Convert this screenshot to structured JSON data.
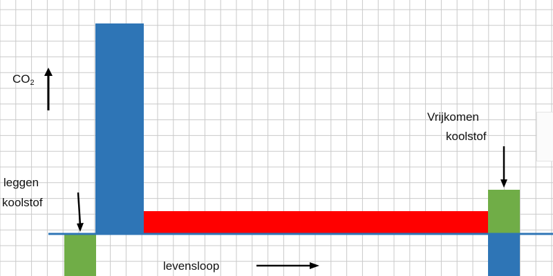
{
  "labels": {
    "co2_main": "CO",
    "co2_sub": "2",
    "vrijkomen_line1": "Vrijkomen",
    "vrijkomen_line2": "koolstof",
    "vastleggen_line1": "leggen",
    "vastleggen_line2": "koolstof",
    "levensloop": "levensloop"
  },
  "colors": {
    "grid": "#c9c9c9",
    "baseline": "#2e75b6",
    "blue": "#2e75b6",
    "green": "#70ad47",
    "red": "#ff0000",
    "arrow": "#000000"
  }
}
